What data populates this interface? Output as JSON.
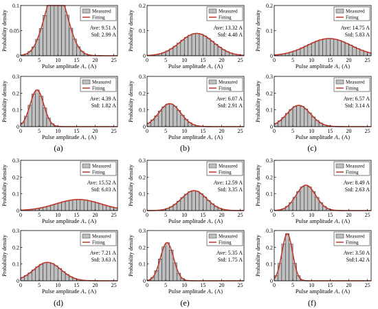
{
  "figure_labels": [
    "(a)",
    "(b)",
    "(c)",
    "(d)",
    "(e)",
    "(f)"
  ],
  "common": {
    "ylabel": "Probability density",
    "xlabel": "Pulse amplitude",
    "xlabel_symbol": "A",
    "xlabel_sub": "+",
    "xlabel_unit": "(A)",
    "legend": [
      "Measured",
      "Fitting"
    ],
    "bar_color": "#bfbfbf",
    "curve_color": "#c0392b",
    "xticks": [
      0,
      5,
      10,
      15,
      20,
      25
    ],
    "xlim": [
      0,
      26
    ]
  },
  "chart_data": [
    {
      "type": "bar",
      "panel": "a",
      "row": 0,
      "col": 0,
      "ylim": [
        0,
        0.1
      ],
      "yticks": [
        0,
        0.05,
        0.1
      ],
      "ave": "Ave: 9.51 A",
      "std": "Std: 2.99 A",
      "mean": 9.51,
      "sd": 2.99
    },
    {
      "type": "bar",
      "panel": "b",
      "row": 0,
      "col": 1,
      "ylim": [
        0,
        0.2
      ],
      "yticks": [
        0,
        0.1,
        0.2
      ],
      "ave": "Ave: 13.32 A",
      "std": "Std: 4.48 A",
      "mean": 13.32,
      "sd": 4.48
    },
    {
      "type": "bar",
      "panel": "c",
      "row": 0,
      "col": 2,
      "ylim": [
        0,
        0.2
      ],
      "yticks": [
        0,
        0.1,
        0.2
      ],
      "ave": "Ave: 14.75 A",
      "std": "Std: 5.83 A",
      "mean": 14.75,
      "sd": 5.83
    },
    {
      "type": "bar",
      "panel": "a",
      "row": 1,
      "col": 0,
      "ylim": [
        0,
        0.3
      ],
      "yticks": [
        0,
        0.1,
        0.2,
        0.3
      ],
      "ave": "Ave: 4.39 A",
      "std": "Std: 1.82 A",
      "mean": 4.39,
      "sd": 1.82
    },
    {
      "type": "bar",
      "panel": "b",
      "row": 1,
      "col": 1,
      "ylim": [
        0,
        0.3
      ],
      "yticks": [
        0,
        0.1,
        0.2,
        0.3
      ],
      "ave": "Ave: 6.07 A",
      "std": "Std: 2.91 A",
      "mean": 6.07,
      "sd": 2.91
    },
    {
      "type": "bar",
      "panel": "c",
      "row": 1,
      "col": 2,
      "ylim": [
        0,
        0.3
      ],
      "yticks": [
        0,
        0.1,
        0.2,
        0.3
      ],
      "ave": "Ave: 6.57 A",
      "std": "Std: 3.14 A",
      "mean": 6.57,
      "sd": 3.14
    },
    {
      "type": "bar",
      "panel": "d",
      "row": 2,
      "col": 0,
      "ylim": [
        0,
        0.3
      ],
      "yticks": [
        0,
        0.1,
        0.2,
        0.3
      ],
      "ave": "Ave: 15.52 A",
      "std": "Std: 6.03 A",
      "mean": 15.52,
      "sd": 6.03
    },
    {
      "type": "bar",
      "panel": "e",
      "row": 2,
      "col": 1,
      "ylim": [
        0,
        0.3
      ],
      "yticks": [
        0,
        0.1,
        0.2,
        0.3
      ],
      "ave": "Ave: 12.59 A",
      "std": "Std: 3.35 A",
      "mean": 12.59,
      "sd": 3.35
    },
    {
      "type": "bar",
      "panel": "f",
      "row": 2,
      "col": 2,
      "ylim": [
        0,
        0.3
      ],
      "yticks": [
        0,
        0.1,
        0.2,
        0.3
      ],
      "ave": "Ave: 8.49 A",
      "std": "Std: 2.63 A",
      "mean": 8.49,
      "sd": 2.63
    },
    {
      "type": "bar",
      "panel": "d",
      "row": 3,
      "col": 0,
      "ylim": [
        0,
        0.3
      ],
      "yticks": [
        0,
        0.1,
        0.2,
        0.3
      ],
      "ave": "Ave: 7.21 A",
      "std": "Std: 3.63 A",
      "mean": 7.21,
      "sd": 3.63
    },
    {
      "type": "bar",
      "panel": "e",
      "row": 3,
      "col": 1,
      "ylim": [
        0,
        0.3
      ],
      "yticks": [
        0,
        0.1,
        0.2,
        0.3
      ],
      "ave": "Ave: 5.35 A",
      "std": "Std: 1.75 A",
      "mean": 5.35,
      "sd": 1.75
    },
    {
      "type": "bar",
      "panel": "f",
      "row": 3,
      "col": 2,
      "ylim": [
        0,
        0.3
      ],
      "yticks": [
        0,
        0.1,
        0.2,
        0.3
      ],
      "ave": "Ave: 3.50 A",
      "std": "Std:1.42 A",
      "mean": 3.5,
      "sd": 1.42
    }
  ]
}
